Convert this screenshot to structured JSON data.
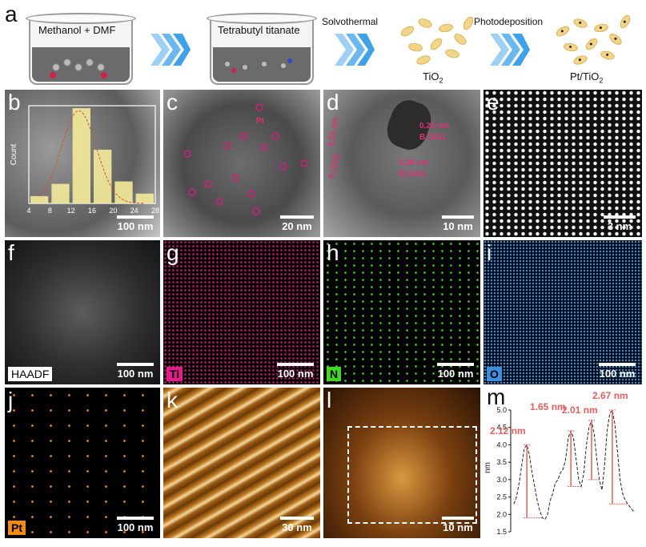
{
  "panel_labels": {
    "a": "a",
    "b": "b",
    "c": "c",
    "d": "d",
    "e": "e",
    "f": "f",
    "g": "g",
    "h": "h",
    "i": "i",
    "j": "j",
    "k": "k",
    "l": "l",
    "m": "m"
  },
  "scheme": {
    "beaker1_label": "Methanol + DMF",
    "beaker2_label": "Tetrabutyl titanate",
    "step1_label": "Solvothermal",
    "step2_label": "Photodeposition",
    "product1_label": "TiO",
    "product1_sub": "2",
    "product2_label": "Pt/TiO",
    "product2_sub": "2"
  },
  "scale_bars": {
    "b": "100 nm",
    "c": "20 nm",
    "d": "10 nm",
    "e": "3 nm",
    "f": "100 nm",
    "g": "100 nm",
    "h": "100 nm",
    "i": "100 nm",
    "j": "100 nm",
    "k": "30 nm",
    "l": "10 nm"
  },
  "eds_labels": {
    "f": "HAADF",
    "g": "Ti",
    "h": "N",
    "i": "O",
    "j": "Pt"
  },
  "eds_colors": {
    "g": "#e0208a",
    "h": "#44d624",
    "i": "#3c8fe0",
    "j": "#f08a1a"
  },
  "panel_c_annotation": "Pt",
  "panel_d_annotations": {
    "a1": "0.23 nm",
    "a2": "A (112)",
    "b1": "0.28 nm",
    "b2": "B (121)",
    "c1": "0.23 nm",
    "c2": "B (111)"
  },
  "chart_data": [
    {
      "type": "bar",
      "panel": "b",
      "ylabel": "Count",
      "x_ticks": [
        "4",
        "8",
        "12",
        "16",
        "20",
        "24",
        "28"
      ],
      "categories": [
        4,
        8,
        12,
        16,
        20,
        24
      ],
      "values": [
        3,
        8,
        39,
        22,
        9,
        4
      ],
      "ylim": [
        0,
        40
      ]
    },
    {
      "type": "line",
      "panel": "m",
      "ylabel": "nm",
      "y_ticks": [
        "1.5",
        "2.0",
        "2.5",
        "3.0",
        "3.5",
        "4.0",
        "4.5",
        "5.0"
      ],
      "ylim": [
        1.5,
        5.0
      ],
      "y": [
        2.3,
        2.5,
        2.9,
        3.4,
        3.9,
        4.0,
        3.7,
        3.2,
        2.8,
        2.4,
        2.1,
        1.9,
        1.85,
        2.0,
        2.4,
        2.6,
        2.9,
        3.0,
        3.2,
        3.3,
        3.6,
        4.2,
        4.4,
        4.2,
        3.6,
        3.0,
        2.8,
        3.2,
        4.0,
        4.5,
        4.7,
        4.3,
        3.6,
        3.0,
        2.7,
        3.4,
        4.4,
        4.9,
        5.0,
        4.6,
        3.8,
        3.0,
        2.6,
        2.4,
        2.3,
        2.2,
        2.1,
        2.1
      ],
      "peak_labels": [
        "2.12 nm",
        "1.65 nm",
        "2.01 nm",
        "2.67 nm"
      ]
    }
  ]
}
